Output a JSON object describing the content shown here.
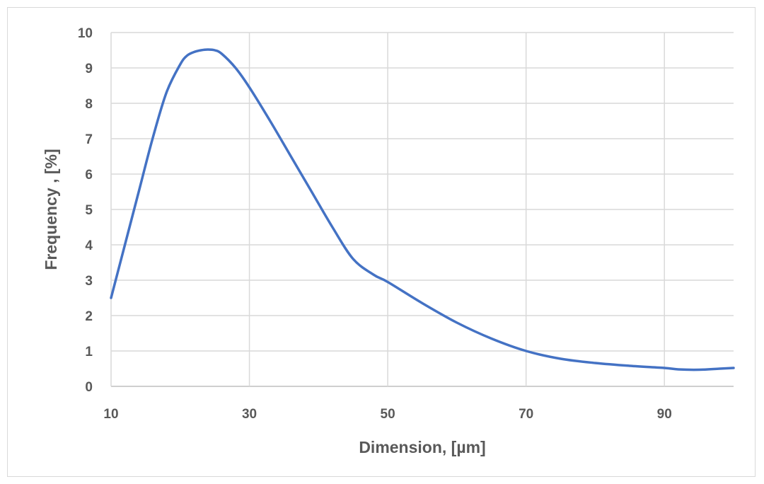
{
  "chart_data": {
    "type": "line",
    "title": "",
    "xlabel": "Dimension, [µm]",
    "ylabel": "Frequency , [%]",
    "xlim": [
      10,
      100
    ],
    "ylim": [
      0,
      10
    ],
    "xticks": [
      10,
      30,
      50,
      70,
      90
    ],
    "yticks": [
      0,
      1,
      2,
      3,
      4,
      5,
      6,
      7,
      8,
      9,
      10
    ],
    "grid": true,
    "series_color": "#4472c4",
    "series": [
      {
        "x": [
          10,
          12,
          14,
          16,
          18,
          20,
          21,
          22,
          23,
          24,
          25,
          26,
          28,
          30,
          33,
          36,
          39,
          42,
          45,
          48,
          50,
          55,
          60,
          65,
          70,
          75,
          80,
          85,
          90,
          92,
          95,
          98,
          100
        ],
        "y": [
          2.5,
          4.0,
          5.5,
          7.0,
          8.3,
          9.1,
          9.35,
          9.45,
          9.5,
          9.52,
          9.5,
          9.4,
          9.0,
          8.45,
          7.5,
          6.5,
          5.5,
          4.5,
          3.6,
          3.15,
          2.95,
          2.35,
          1.8,
          1.35,
          1.0,
          0.78,
          0.66,
          0.58,
          0.52,
          0.48,
          0.47,
          0.5,
          0.52
        ]
      }
    ]
  }
}
